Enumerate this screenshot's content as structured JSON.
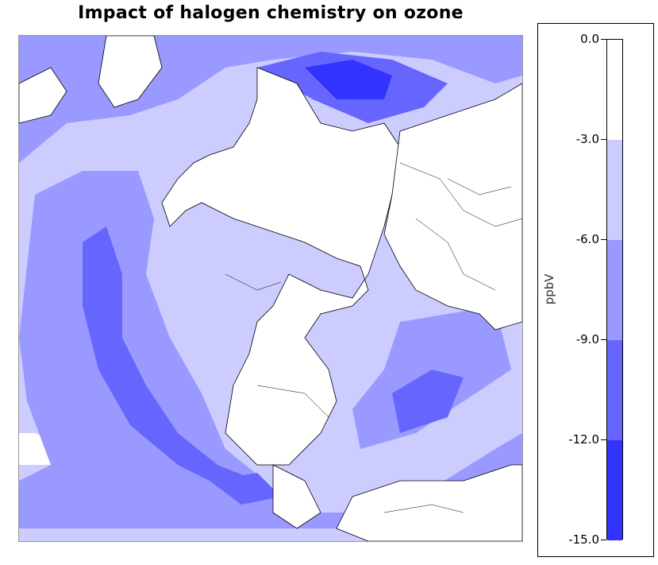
{
  "title": "Impact of halogen chemistry on ozone",
  "colorbar": {
    "unit": "ppbV",
    "ticks": [
      "0.0",
      "-3.0",
      "-6.0",
      "-9.0",
      "-12.0",
      "-15.0"
    ],
    "levels": [
      {
        "range": [
          -3,
          0
        ],
        "color": "#ffffff"
      },
      {
        "range": [
          -6,
          -3
        ],
        "color": "#ccccff"
      },
      {
        "range": [
          -9,
          -6
        ],
        "color": "#9999ff"
      },
      {
        "range": [
          -12,
          -9
        ],
        "color": "#6666ff"
      },
      {
        "range": [
          -15,
          -12
        ],
        "color": "#3333ff"
      }
    ]
  },
  "map": {
    "projection": "polar",
    "land_color": "#ffffff",
    "boundary_color": "#000000"
  }
}
